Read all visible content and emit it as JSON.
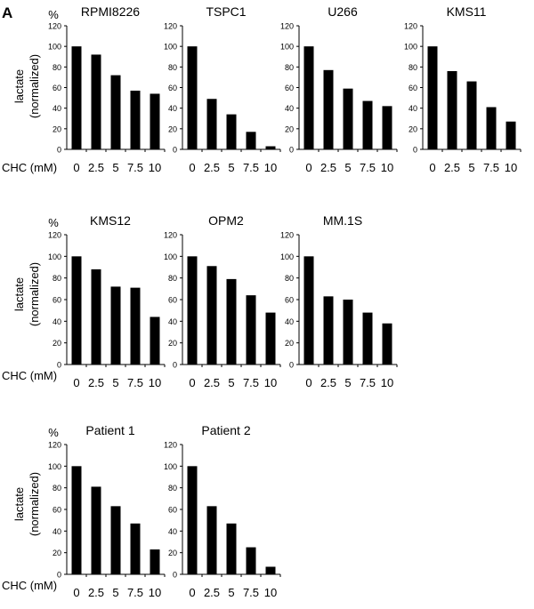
{
  "panel_letter": "A",
  "percent_symbol": "%",
  "y_axis_label_line1": "lactate",
  "y_axis_label_line2": "(normalized)",
  "x_axis_label": "CHC (mM)",
  "bar_color": "#000000",
  "chart_data": [
    {
      "type": "bar",
      "title": "RPMI8226",
      "categories": [
        "0",
        "2.5",
        "5",
        "7.5",
        "10"
      ],
      "values": [
        100,
        92,
        72,
        57,
        54
      ],
      "ylim": [
        0,
        120
      ],
      "yticks": [
        0,
        20,
        40,
        60,
        80,
        100,
        120
      ]
    },
    {
      "type": "bar",
      "title": "TSPC1",
      "categories": [
        "0",
        "2.5",
        "5",
        "7.5",
        "10"
      ],
      "values": [
        100,
        49,
        34,
        17,
        3
      ],
      "ylim": [
        0,
        120
      ],
      "yticks": [
        0,
        20,
        40,
        60,
        80,
        100,
        120
      ]
    },
    {
      "type": "bar",
      "title": "U266",
      "categories": [
        "0",
        "2.5",
        "5",
        "7.5",
        "10"
      ],
      "values": [
        100,
        77,
        59,
        47,
        42
      ],
      "ylim": [
        0,
        120
      ],
      "yticks": [
        0,
        20,
        40,
        60,
        80,
        100,
        120
      ]
    },
    {
      "type": "bar",
      "title": "KMS11",
      "categories": [
        "0",
        "2.5",
        "5",
        "7.5",
        "10"
      ],
      "values": [
        100,
        76,
        66,
        41,
        27
      ],
      "ylim": [
        0,
        120
      ],
      "yticks": [
        0,
        20,
        40,
        60,
        80,
        100,
        120
      ]
    },
    {
      "type": "bar",
      "title": "KMS12",
      "categories": [
        "0",
        "2.5",
        "5",
        "7.5",
        "10"
      ],
      "values": [
        100,
        88,
        72,
        71,
        44
      ],
      "ylim": [
        0,
        120
      ],
      "yticks": [
        0,
        20,
        40,
        60,
        80,
        100,
        120
      ]
    },
    {
      "type": "bar",
      "title": "OPM2",
      "categories": [
        "0",
        "2.5",
        "5",
        "7.5",
        "10"
      ],
      "values": [
        100,
        91,
        79,
        64,
        48
      ],
      "ylim": [
        0,
        120
      ],
      "yticks": [
        0,
        20,
        40,
        60,
        80,
        100,
        120
      ]
    },
    {
      "type": "bar",
      "title": "MM.1S",
      "categories": [
        "0",
        "2.5",
        "5",
        "7.5",
        "10"
      ],
      "values": [
        100,
        63,
        60,
        48,
        38
      ],
      "ylim": [
        0,
        120
      ],
      "yticks": [
        0,
        20,
        40,
        60,
        80,
        100,
        120
      ]
    },
    {
      "type": "bar",
      "title": "Patient 1",
      "categories": [
        "0",
        "2.5",
        "5",
        "7.5",
        "10"
      ],
      "values": [
        100,
        81,
        63,
        47,
        23
      ],
      "ylim": [
        0,
        120
      ],
      "yticks": [
        0,
        20,
        40,
        60,
        80,
        100,
        120
      ]
    },
    {
      "type": "bar",
      "title": "Patient 2",
      "categories": [
        "0",
        "2.5",
        "5",
        "7.5",
        "10"
      ],
      "values": [
        100,
        63,
        47,
        25,
        7
      ],
      "ylim": [
        0,
        120
      ],
      "yticks": [
        0,
        20,
        40,
        60,
        80,
        100,
        120
      ]
    }
  ]
}
